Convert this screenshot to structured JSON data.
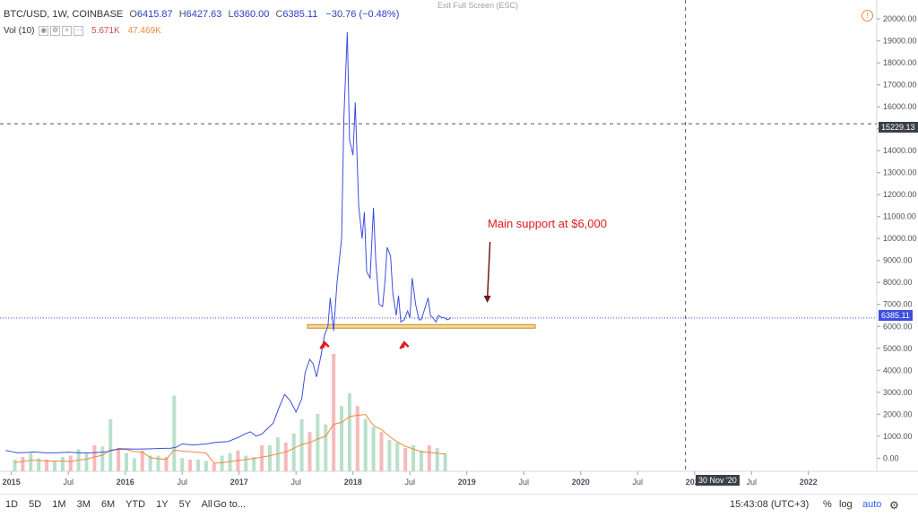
{
  "header": {
    "symbol": "BTC/USD, 1W, COINBASE",
    "o_label": "O",
    "o_value": "6415.87",
    "h_label": "H",
    "h_value": "6427.63",
    "l_label": "L",
    "l_value": "6360.00",
    "c_label": "C",
    "c_value": "6385.11",
    "change": "−30.76 (−0.48%)",
    "exit_fullscreen": "Exit Full Screen (ESC)"
  },
  "volume_legend": {
    "label": "Vol (10)",
    "value1": "5.671K",
    "value2": "47.469K"
  },
  "price_tag": "6385.11",
  "crosshair_price_tag": "15229.13",
  "crosshair_date_tag": "30 Nov '20",
  "annotation": "Main support at $6,000",
  "bottom_bar": {
    "ranges": [
      "1D",
      "5D",
      "1M",
      "3M",
      "6M",
      "YTD",
      "1Y",
      "5Y",
      "All"
    ],
    "goto": "Go to...",
    "time": "15:43:08 (UTC+3)",
    "pct": "%",
    "log": "log",
    "auto": "auto"
  },
  "colors": {
    "price_line": "#3d4ee0",
    "volume_up": "#a8d8be",
    "volume_down": "#f2a9a9",
    "volume_ma": "#f0883e",
    "support_fill": "#f6d89a",
    "support_border": "#c58b24",
    "annotation_arrow": "#6b1c1c",
    "marker_arrow": "#e01b1b"
  },
  "chart_data": {
    "type": "line",
    "title": "BTC/USD, 1W, COINBASE",
    "x_ticks": [
      "2015",
      "Jul",
      "2016",
      "Jul",
      "2017",
      "Jul",
      "2018",
      "Jul",
      "2019",
      "Jul",
      "2020",
      "Jul",
      "2021",
      "Jul",
      "2022"
    ],
    "y_ticks": [
      0,
      1000,
      2000,
      3000,
      4000,
      5000,
      6000,
      7000,
      8000,
      9000,
      10000,
      11000,
      12000,
      13000,
      14000,
      15000,
      16000,
      17000,
      18000,
      19000,
      20000
    ],
    "y_tick_labels": [
      "0.00",
      "1000.00",
      "2000.00",
      "3000.00",
      "4000.00",
      "5000.00",
      "6000.00",
      "7000.00",
      "8000.00",
      "9000.00",
      "10000.00",
      "11000.00",
      "12000.00",
      "13000.00",
      "14000.00",
      "15000.00",
      "16000.00",
      "17000.00",
      "18000.00",
      "19000.00",
      "20000.00"
    ],
    "ylim": [
      -600,
      20700
    ],
    "xlim": [
      2014.9,
      2022.6
    ],
    "support_level": 6000,
    "last_price": 6385.11,
    "crosshair_price": 15229.13,
    "crosshair_date": 2020.92,
    "series": [
      {
        "type": "line",
        "x": [
          2014.95,
          2015.0,
          2015.05,
          2015.1,
          2015.15,
          2015.2,
          2015.3,
          2015.4,
          2015.5,
          2015.6,
          2015.7,
          2015.8,
          2015.85,
          2015.9,
          2015.95,
          2016.0,
          2016.1,
          2016.2,
          2016.3,
          2016.4,
          2016.45,
          2016.5,
          2016.55,
          2016.6,
          2016.7,
          2016.8,
          2016.9,
          2017.0,
          2017.05,
          2017.1,
          2017.15,
          2017.2,
          2017.25,
          2017.3,
          2017.35,
          2017.4,
          2017.45,
          2017.5,
          2017.55,
          2017.58,
          2017.62,
          2017.65,
          2017.68,
          2017.72,
          2017.75,
          2017.78,
          2017.8,
          2017.83,
          2017.86,
          2017.9,
          2017.92,
          2017.95,
          2017.97,
          2018.0,
          2018.02,
          2018.05,
          2018.08,
          2018.1,
          2018.12,
          2018.15,
          2018.18,
          2018.2,
          2018.23,
          2018.26,
          2018.28,
          2018.3,
          2018.33,
          2018.35,
          2018.38,
          2018.4,
          2018.42,
          2018.45,
          2018.48,
          2018.5,
          2018.52,
          2018.55,
          2018.58,
          2018.6,
          2018.63,
          2018.66,
          2018.68,
          2018.7,
          2018.73,
          2018.75,
          2018.78,
          2018.8,
          2018.83,
          2018.86
        ],
        "y": [
          350,
          300,
          240,
          250,
          260,
          280,
          240,
          240,
          270,
          240,
          240,
          270,
          300,
          370,
          430,
          420,
          410,
          420,
          440,
          450,
          500,
          650,
          620,
          600,
          640,
          720,
          750,
          960,
          1100,
          1200,
          1000,
          1100,
          1350,
          1600,
          2300,
          2900,
          2600,
          2100,
          2700,
          3900,
          4500,
          4300,
          3700,
          4700,
          5600,
          6000,
          7300,
          5800,
          8000,
          10000,
          15500,
          19400,
          14500,
          13800,
          16200,
          11500,
          10000,
          11200,
          8500,
          8200,
          11400,
          9000,
          7000,
          6900,
          8000,
          9600,
          9200,
          7500,
          6500,
          7400,
          6200,
          6300,
          6700,
          6400,
          8200,
          7000,
          6300,
          6300,
          6800,
          7300,
          6500,
          6400,
          6200,
          6500,
          6400,
          6400,
          6300,
          6385
        ]
      },
      {
        "type": "bar",
        "name": "Vol (10)",
        "x": [
          2015.03,
          2015.1,
          2015.17,
          2015.24,
          2015.31,
          2015.38,
          2015.45,
          2015.52,
          2015.59,
          2015.66,
          2015.73,
          2015.8,
          2015.87,
          2015.94,
          2016.01,
          2016.08,
          2016.15,
          2016.22,
          2016.29,
          2016.36,
          2016.43,
          2016.5,
          2016.57,
          2016.64,
          2016.71,
          2016.78,
          2016.85,
          2016.92,
          2016.99,
          2017.06,
          2017.13,
          2017.2,
          2017.27,
          2017.34,
          2017.41,
          2017.48,
          2017.55,
          2017.62,
          2017.69,
          2017.76,
          2017.83,
          2017.9,
          2017.97,
          2018.04,
          2018.11,
          2018.18,
          2018.25,
          2018.32,
          2018.39,
          2018.46,
          2018.53,
          2018.6,
          2018.67,
          2018.74,
          2018.81
        ],
        "values": [
          0.45,
          0.55,
          0.7,
          0.5,
          0.45,
          0.4,
          0.55,
          0.6,
          0.85,
          0.7,
          1.0,
          0.95,
          2.0,
          0.9,
          0.7,
          0.5,
          0.8,
          0.6,
          0.6,
          0.55,
          2.9,
          0.5,
          0.45,
          0.45,
          0.4,
          0.3,
          0.6,
          0.7,
          0.8,
          0.6,
          0.55,
          1.0,
          1.0,
          1.3,
          1.1,
          1.45,
          2.0,
          1.5,
          2.2,
          1.8,
          4.5,
          2.5,
          3.0,
          2.5,
          2.0,
          1.7,
          1.5,
          1.2,
          1.1,
          0.9,
          1.0,
          0.8,
          1.0,
          0.9,
          0.7
        ],
        "y_unit": "thousand (relative scale)"
      }
    ]
  }
}
